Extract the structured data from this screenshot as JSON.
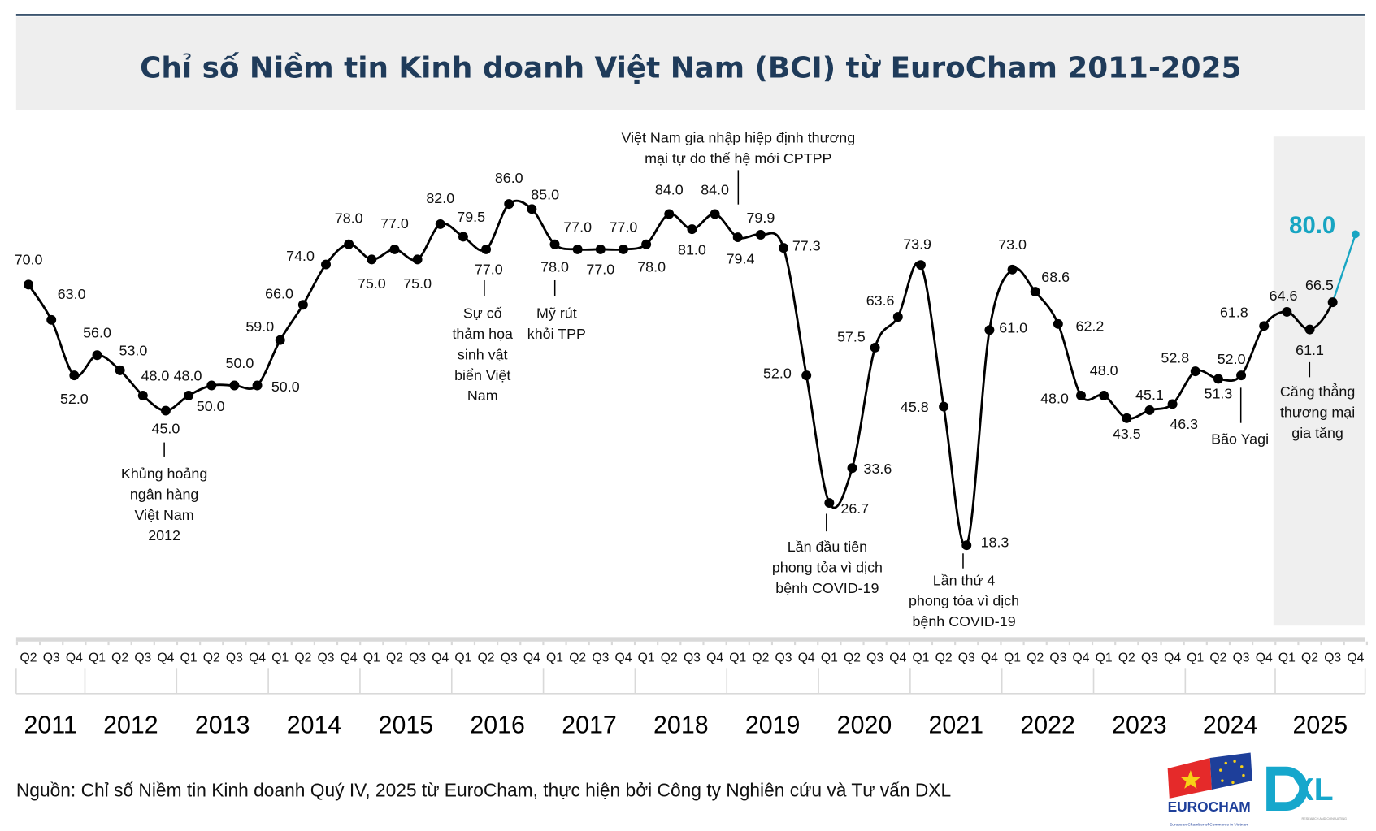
{
  "title": "Chỉ số Niềm tin Kinh doanh Việt Nam (BCI) từ EuroCham 2011-2025",
  "source": "Nguồn: Chỉ số Niềm tin Kinh doanh Quý IV, 2025 từ EuroCham, thực hiện bởi Công ty Nghiên cứu và Tư vấn DXL",
  "logos": {
    "eurocham": {
      "text": "EUROCHAM",
      "subtext": "European Chamber of Commerce in Vietnam"
    },
    "dxl": {
      "text": "XL",
      "subtext": "RESEARCH AND CONSULTING"
    }
  },
  "colors": {
    "title": "#1f3b5a",
    "line": "#000000",
    "highlight": "#17a5c2",
    "shade": "#efefef"
  },
  "chart_data": {
    "type": "line",
    "title": "Chỉ số Niềm tin Kinh doanh Việt Nam (BCI) từ EuroCham 2011-2025",
    "years": [
      "2011",
      "2012",
      "2013",
      "2014",
      "2015",
      "2016",
      "2017",
      "2018",
      "2019",
      "2020",
      "2021",
      "2022",
      "2023",
      "2024",
      "2025"
    ],
    "quarters": [
      "Q2",
      "Q3",
      "Q4",
      "Q1",
      "Q2",
      "Q3",
      "Q4",
      "Q1",
      "Q2",
      "Q3",
      "Q4",
      "Q1",
      "Q2",
      "Q3",
      "Q4",
      "Q1",
      "Q2",
      "Q3",
      "Q4",
      "Q1",
      "Q2",
      "Q3",
      "Q4",
      "Q1",
      "Q2",
      "Q3",
      "Q4",
      "Q1",
      "Q2",
      "Q3",
      "Q4",
      "Q1",
      "Q2",
      "Q3",
      "Q4",
      "Q1",
      "Q2",
      "Q3",
      "Q4",
      "Q1",
      "Q2",
      "Q3",
      "Q4",
      "Q1",
      "Q2",
      "Q3",
      "Q4",
      "Q1",
      "Q2",
      "Q3",
      "Q4",
      "Q1",
      "Q2",
      "Q3",
      "Q4",
      "Q1",
      "Q2",
      "Q3",
      "Q4"
    ],
    "values": [
      70.0,
      63.0,
      52.0,
      56.0,
      53.0,
      48.0,
      45.0,
      48.0,
      50.0,
      50.0,
      50.0,
      59.0,
      66.0,
      74.0,
      78.0,
      75.0,
      77.0,
      75.0,
      82.0,
      79.5,
      77.0,
      86.0,
      85.0,
      78.0,
      77.0,
      77.0,
      77.0,
      78.0,
      84.0,
      81.0,
      84.0,
      79.4,
      79.9,
      77.3,
      52.0,
      26.7,
      33.6,
      57.5,
      63.6,
      73.9,
      45.8,
      18.3,
      61.0,
      73.0,
      68.6,
      62.2,
      48.0,
      48.0,
      43.5,
      45.1,
      46.3,
      52.8,
      51.3,
      52.0,
      61.8,
      64.6,
      61.1,
      66.5,
      80.0
    ],
    "labels": [
      "70.0",
      "63.0",
      "52.0",
      "56.0",
      "53.0",
      "48.0",
      "45.0",
      "48.0",
      "50.0",
      "50.0",
      "50.0",
      "59.0",
      "66.0",
      "74.0",
      "78.0",
      "75.0",
      "77.0",
      "75.0",
      "82.0",
      "79.5",
      "77.0",
      "86.0",
      "85.0",
      "78.0",
      "77.0",
      "77.0",
      "77.0",
      "78.0",
      "84.0",
      "81.0",
      "84.0",
      "79.4",
      "79.9",
      "77.3",
      "52.0",
      "26.7",
      "33.6",
      "57.5",
      "63.6",
      "73.9",
      "45.8",
      "18.3",
      "61.0",
      "73.0",
      "68.6",
      "62.2",
      "48.0",
      "48.0",
      "43.5",
      "45.1",
      "46.3",
      "52.8",
      "51.3",
      "52.0",
      "61.8",
      "64.6",
      "61.1",
      "66.5",
      "80.0"
    ],
    "highlight_point": {
      "year": "2025",
      "quarter": "Q4",
      "value": "80.0"
    },
    "shaded_period": "2025",
    "grid": false,
    "legend": "none",
    "annotations": [
      {
        "at": "2012 Q4",
        "lines": [
          "Khủng hoảng",
          "ngân hàng",
          "Việt Nam",
          "2012"
        ]
      },
      {
        "at": "2016 Q2",
        "lines": [
          "Sự cố",
          "thảm họa",
          "sinh vật",
          "biển Việt",
          "Nam"
        ]
      },
      {
        "at": "2017 Q1",
        "lines": [
          "Mỹ rút",
          "khỏi TPP"
        ]
      },
      {
        "at": "2019 Q1",
        "lines": [
          "Việt Nam gia nhập hiệp định thương",
          "mại tự do thế hệ mới CPTPP"
        ]
      },
      {
        "at": "2020 Q1",
        "lines": [
          "Lần đầu tiên",
          "phong tỏa vì dịch",
          "bệnh COVID-19"
        ]
      },
      {
        "at": "2021 Q3",
        "lines": [
          "Lần thứ 4",
          "phong tỏa vì dịch",
          "bệnh COVID-19"
        ]
      },
      {
        "at": "2024 Q3",
        "lines": [
          "Bão Yagi"
        ]
      },
      {
        "at": "2025 Q2",
        "lines": [
          "Căng thẳng",
          "thương mại",
          "gia tăng"
        ]
      }
    ]
  }
}
